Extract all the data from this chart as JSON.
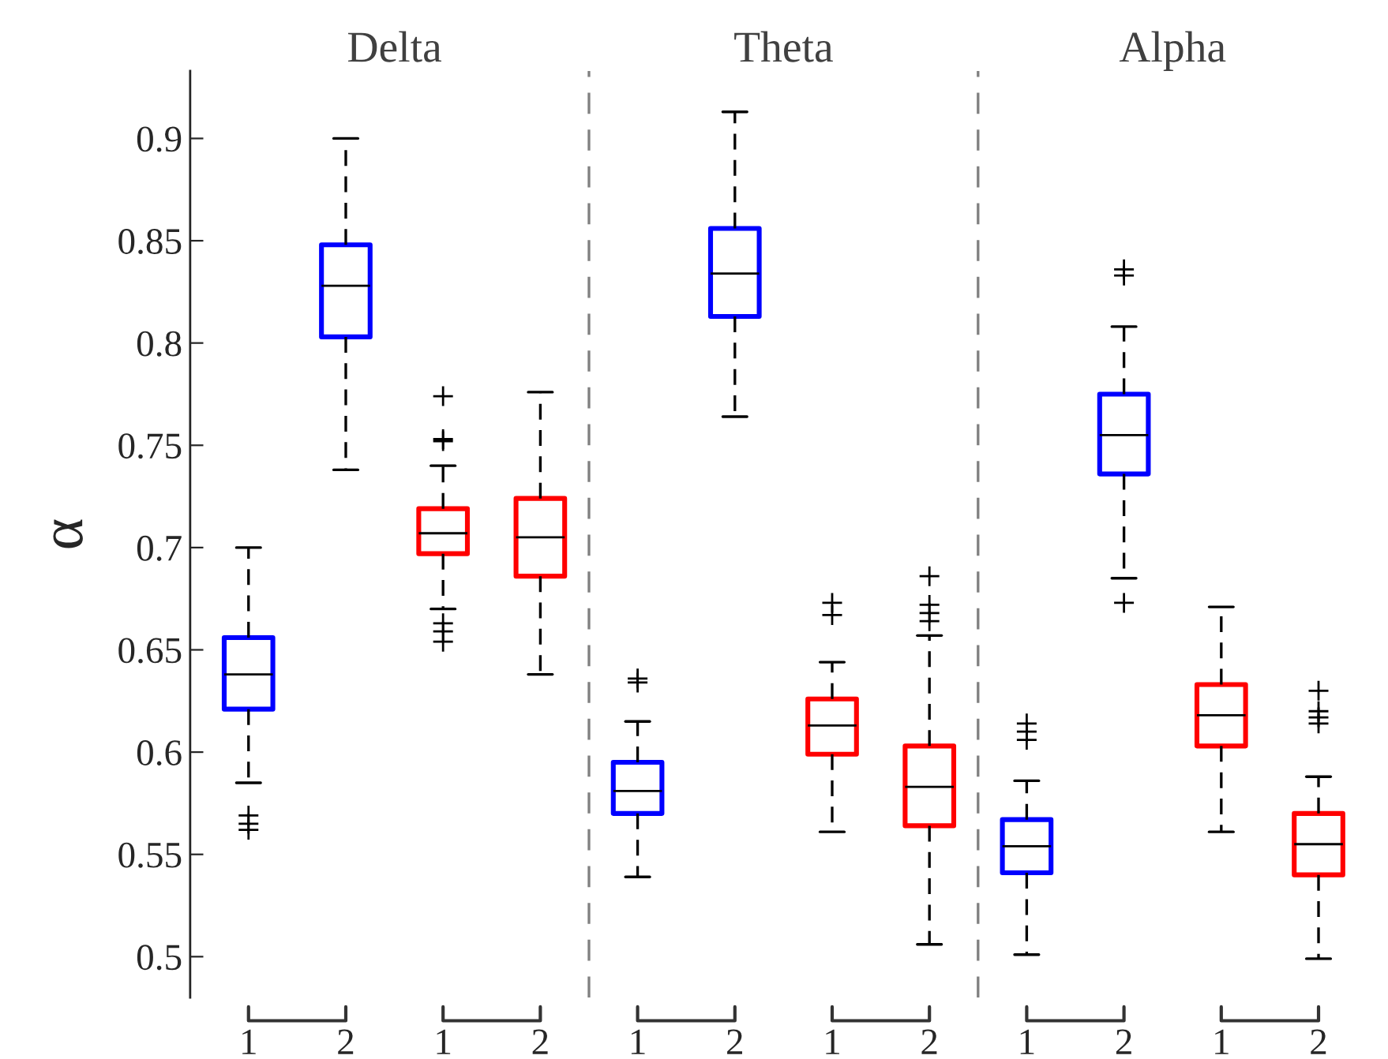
{
  "chart_data": {
    "type": "box",
    "ylabel": "α",
    "categories": [
      "1",
      "2",
      "1",
      "2",
      "1",
      "2",
      "1",
      "2",
      "1",
      "2",
      "1",
      "2"
    ],
    "colors": [
      "#0000ff",
      "#0000ff",
      "#ff0000",
      "#ff0000",
      "#0000ff",
      "#0000ff",
      "#ff0000",
      "#ff0000",
      "#0000ff",
      "#0000ff",
      "#ff0000",
      "#ff0000"
    ],
    "boxes": [
      {
        "low": 0.585,
        "q1": 0.621,
        "median": 0.638,
        "q3": 0.656,
        "high": 0.7,
        "outliers": [
          0.569,
          0.565,
          0.562
        ]
      },
      {
        "low": 0.738,
        "q1": 0.803,
        "median": 0.828,
        "q3": 0.848,
        "high": 0.9
      },
      {
        "low": 0.67,
        "q1": 0.697,
        "median": 0.707,
        "q3": 0.719,
        "high": 0.74,
        "outliers": [
          0.774,
          0.753,
          0.752,
          0.663,
          0.659,
          0.654
        ]
      },
      {
        "low": 0.638,
        "q1": 0.686,
        "median": 0.705,
        "q3": 0.724,
        "high": 0.776
      },
      {
        "low": 0.539,
        "q1": 0.57,
        "median": 0.581,
        "q3": 0.595,
        "high": 0.615,
        "outliers": [
          0.636,
          0.634
        ]
      },
      {
        "low": 0.764,
        "q1": 0.813,
        "median": 0.834,
        "q3": 0.856,
        "high": 0.913
      },
      {
        "low": 0.561,
        "q1": 0.599,
        "median": 0.613,
        "q3": 0.626,
        "high": 0.644,
        "outliers": [
          0.673,
          0.667
        ]
      },
      {
        "low": 0.506,
        "q1": 0.564,
        "median": 0.583,
        "q3": 0.603,
        "high": 0.657,
        "outliers": [
          0.686,
          0.672,
          0.668,
          0.664
        ]
      },
      {
        "low": 0.501,
        "q1": 0.541,
        "median": 0.554,
        "q3": 0.567,
        "high": 0.586,
        "outliers": [
          0.614,
          0.61,
          0.606
        ]
      },
      {
        "low": 0.685,
        "q1": 0.736,
        "median": 0.755,
        "q3": 0.775,
        "high": 0.808,
        "outliers": [
          0.836,
          0.833,
          0.673
        ]
      },
      {
        "low": 0.561,
        "q1": 0.603,
        "median": 0.618,
        "q3": 0.633,
        "high": 0.671
      },
      {
        "low": 0.499,
        "q1": 0.54,
        "median": 0.555,
        "q3": 0.57,
        "high": 0.588,
        "outliers": [
          0.63,
          0.62,
          0.617,
          0.614
        ]
      }
    ],
    "annotations": [
      "Delta",
      "Theta",
      "Alpha"
    ],
    "ylim": [
      0.48,
      0.933
    ],
    "yticks": [
      {
        "value": 0.5,
        "label": "0.5"
      },
      0.55,
      {
        "value": 0.6,
        "label": "0.6"
      },
      0.65,
      {
        "value": 0.7,
        "label": "0.7"
      },
      0.75,
      {
        "value": 0.8,
        "label": "0.8"
      },
      0.85,
      {
        "value": 0.9,
        "label": "0.9"
      }
    ],
    "grid": false,
    "legend": false
  }
}
